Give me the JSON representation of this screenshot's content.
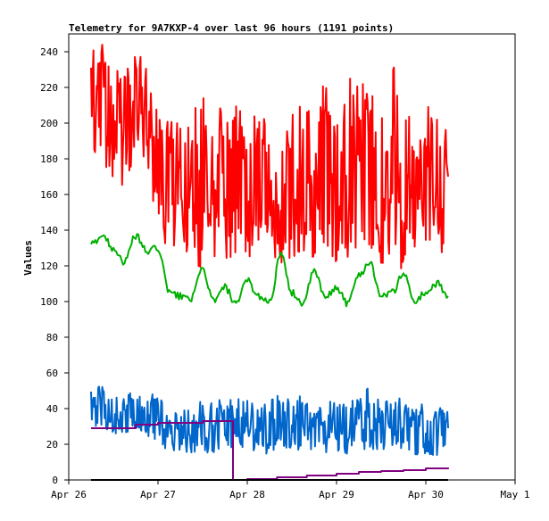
{
  "chart_data": {
    "type": "line",
    "title": "Telemetry for 9A7KXP-4 over last 96 hours (1191 points)",
    "xlabel": "",
    "ylabel": "Values",
    "xlim": [
      "2019-04-26T00:00",
      "2019-05-01T00:00"
    ],
    "ylim": [
      0,
      250
    ],
    "x_tick_labels": [
      "Apr 26",
      "Apr 27",
      "Apr 28",
      "Apr 29",
      "Apr 30",
      "May 1"
    ],
    "y_ticks": [
      0,
      20,
      40,
      60,
      80,
      100,
      120,
      140,
      160,
      180,
      200,
      220,
      240
    ],
    "grid": false,
    "legend": "none",
    "series": [
      {
        "color": "#ff0000",
        "x": [
          "2019-04-26T06:00",
          "2019-04-26T09:00",
          "2019-04-26T12:00",
          "2019-04-26T15:00",
          "2019-04-26T18:00",
          "2019-04-26T21:00",
          "2019-04-27T00:00",
          "2019-04-27T03:00",
          "2019-04-27T06:00",
          "2019-04-27T09:00",
          "2019-04-27T12:00",
          "2019-04-27T15:00",
          "2019-04-27T18:00",
          "2019-04-27T21:00",
          "2019-04-28T00:00",
          "2019-04-28T03:00",
          "2019-04-28T06:00",
          "2019-04-28T09:00",
          "2019-04-28T12:00",
          "2019-04-28T15:00",
          "2019-04-28T18:00",
          "2019-04-28T21:00",
          "2019-04-29T00:00",
          "2019-04-29T03:00",
          "2019-04-29T06:00",
          "2019-04-29T09:00",
          "2019-04-29T12:00",
          "2019-04-29T15:00",
          "2019-04-29T18:00",
          "2019-04-29T21:00",
          "2019-04-30T00:00",
          "2019-04-30T03:00",
          "2019-04-30T06:00"
        ],
        "y": [
          205,
          215,
          195,
          200,
          210,
          205,
          175,
          165,
          170,
          160,
          165,
          160,
          175,
          165,
          170,
          160,
          165,
          155,
          170,
          165,
          160,
          175,
          160,
          165,
          175,
          170,
          160,
          180,
          155,
          165,
          165,
          160,
          170
        ],
        "min": [
          185,
          180,
          165,
          165,
          180,
          175,
          140,
          125,
          125,
          120,
          115,
          125,
          120,
          125,
          125,
          120,
          120,
          120,
          125,
          125,
          120,
          130,
          120,
          125,
          130,
          125,
          120,
          125,
          115,
          125,
          125,
          125,
          130
        ],
        "max": [
          250,
          245,
          230,
          235,
          240,
          235,
          210,
          200,
          205,
          205,
          215,
          210,
          225,
          215,
          215,
          200,
          210,
          210,
          225,
          215,
          210,
          225,
          210,
          225,
          225,
          220,
          215,
          245,
          205,
          210,
          210,
          210,
          200
        ]
      },
      {
        "color": "#00b000",
        "x": [
          "2019-04-26T06:00",
          "2019-04-26T09:00",
          "2019-04-26T12:00",
          "2019-04-26T15:00",
          "2019-04-26T18:00",
          "2019-04-26T21:00",
          "2019-04-27T00:00",
          "2019-04-27T03:00",
          "2019-04-27T06:00",
          "2019-04-27T09:00",
          "2019-04-27T12:00",
          "2019-04-27T15:00",
          "2019-04-27T18:00",
          "2019-04-27T21:00",
          "2019-04-28T00:00",
          "2019-04-28T03:00",
          "2019-04-28T06:00",
          "2019-04-28T09:00",
          "2019-04-28T12:00",
          "2019-04-28T15:00",
          "2019-04-28T18:00",
          "2019-04-28T21:00",
          "2019-04-29T00:00",
          "2019-04-29T03:00",
          "2019-04-29T06:00",
          "2019-04-29T09:00",
          "2019-04-29T12:00",
          "2019-04-29T15:00",
          "2019-04-29T18:00",
          "2019-04-29T21:00",
          "2019-04-30T00:00",
          "2019-04-30T03:00",
          "2019-04-30T06:00"
        ],
        "y": [
          132,
          137,
          130,
          122,
          137,
          128,
          130,
          105,
          103,
          102,
          118,
          100,
          108,
          98,
          112,
          103,
          100,
          126,
          105,
          99,
          117,
          102,
          108,
          99,
          115,
          122,
          103,
          105,
          116,
          100,
          105,
          110,
          103
        ]
      },
      {
        "color": "#0066cc",
        "x": [
          "2019-04-26T06:00",
          "2019-04-26T09:00",
          "2019-04-26T12:00",
          "2019-04-26T15:00",
          "2019-04-26T18:00",
          "2019-04-26T21:00",
          "2019-04-27T00:00",
          "2019-04-27T03:00",
          "2019-04-27T06:00",
          "2019-04-27T09:00",
          "2019-04-27T12:00",
          "2019-04-27T15:00",
          "2019-04-27T18:00",
          "2019-04-27T21:00",
          "2019-04-28T00:00",
          "2019-04-28T03:00",
          "2019-04-28T06:00",
          "2019-04-28T09:00",
          "2019-04-28T12:00",
          "2019-04-28T15:00",
          "2019-04-28T18:00",
          "2019-04-28T21:00",
          "2019-04-29T00:00",
          "2019-04-29T03:00",
          "2019-04-29T06:00",
          "2019-04-29T09:00",
          "2019-04-29T12:00",
          "2019-04-29T15:00",
          "2019-04-29T18:00",
          "2019-04-29T21:00",
          "2019-04-30T00:00",
          "2019-04-30T03:00",
          "2019-04-30T06:00"
        ],
        "y": [
          38,
          40,
          36,
          35,
          38,
          34,
          36,
          26,
          26,
          27,
          28,
          27,
          30,
          30,
          28,
          25,
          28,
          30,
          28,
          31,
          25,
          27,
          28,
          26,
          30,
          31,
          27,
          33,
          29,
          26,
          27,
          25,
          29
        ],
        "min": [
          28,
          30,
          24,
          25,
          27,
          24,
          22,
          14,
          15,
          15,
          16,
          14,
          16,
          18,
          16,
          13,
          15,
          16,
          15,
          17,
          12,
          15,
          16,
          14,
          16,
          17,
          14,
          19,
          15,
          14,
          14,
          13,
          18
        ],
        "max": [
          52,
          53,
          48,
          47,
          53,
          49,
          47,
          43,
          41,
          42,
          47,
          44,
          48,
          46,
          45,
          41,
          45,
          48,
          45,
          50,
          39,
          43,
          45,
          42,
          48,
          53,
          44,
          51,
          44,
          42,
          43,
          40,
          43
        ]
      },
      {
        "color": "#800080",
        "step": true,
        "x": [
          "2019-04-26T06:00",
          "2019-04-26T18:00",
          "2019-04-27T00:00",
          "2019-04-27T12:00",
          "2019-04-27T20:00",
          "2019-04-27T20:10",
          "2019-04-28T00:00",
          "2019-04-28T08:00",
          "2019-04-28T16:00",
          "2019-04-29T00:00",
          "2019-04-29T06:00",
          "2019-04-29T12:00",
          "2019-04-29T18:00",
          "2019-04-30T00:00",
          "2019-04-30T06:00"
        ],
        "y": [
          29,
          31,
          32,
          33,
          33,
          0,
          0.5,
          1.5,
          2.5,
          3.5,
          4.5,
          5,
          5.5,
          6.5,
          7
        ]
      },
      {
        "color": "#000000",
        "x": [
          "2019-04-26T06:00",
          "2019-04-30T06:00"
        ],
        "y": [
          0,
          0
        ]
      }
    ]
  }
}
